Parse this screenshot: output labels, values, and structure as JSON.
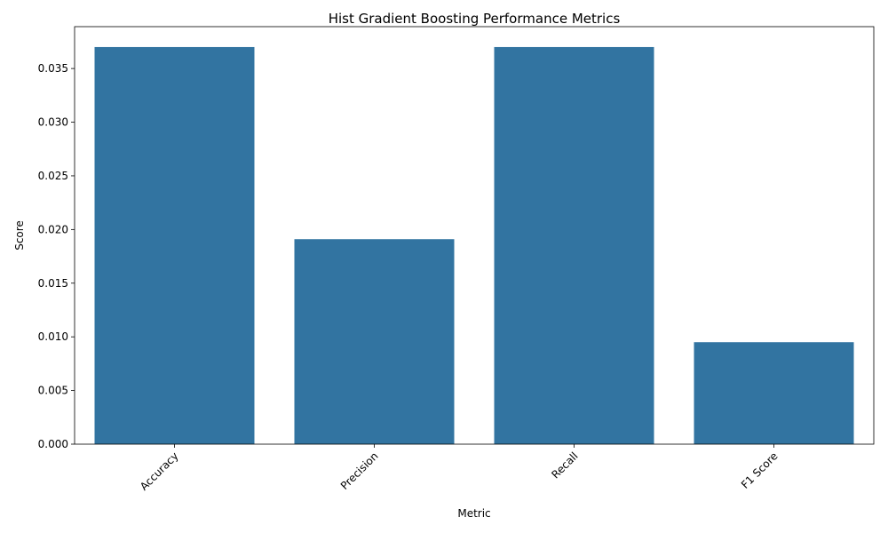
{
  "chart_data": {
    "type": "bar",
    "title": "Hist Gradient Boosting Performance Metrics",
    "xlabel": "Metric",
    "ylabel": "Score",
    "categories": [
      "Accuracy",
      "Precision",
      "Recall",
      "F1 Score"
    ],
    "values": [
      0.037,
      0.0191,
      0.037,
      0.0095
    ],
    "ylim": [
      0,
      0.0389
    ],
    "yticks": [
      "0.000",
      "0.005",
      "0.010",
      "0.015",
      "0.020",
      "0.025",
      "0.030",
      "0.035"
    ],
    "ytick_values": [
      0,
      0.005,
      0.01,
      0.015,
      0.02,
      0.025,
      0.03,
      0.035
    ],
    "xtick_rotation": "45deg",
    "grid": false,
    "bar_color": "#3274a1"
  }
}
